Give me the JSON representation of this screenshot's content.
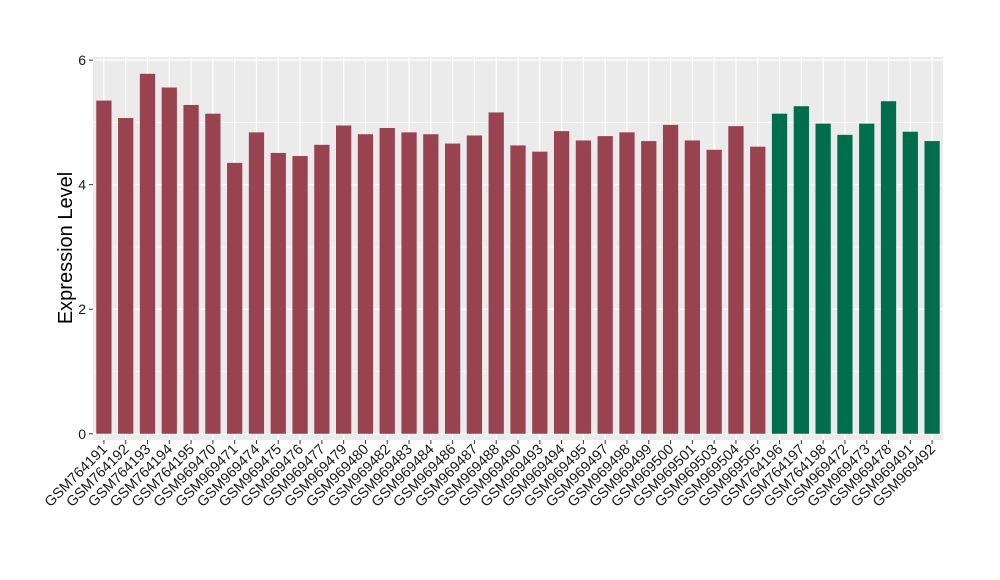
{
  "chart_data": {
    "type": "bar",
    "ylabel": "Expression Level",
    "xlabel": "",
    "ylim": [
      -0.1,
      6.05
    ],
    "yticks": [
      0,
      2,
      4,
      6
    ],
    "grid": true,
    "legend": "none",
    "colors": {
      "groupA": "#9a4350",
      "groupB": "#006e4a",
      "panel": "#ebebeb",
      "grid": "#ffffff"
    },
    "categories": [
      "GSM764191",
      "GSM764192",
      "GSM764193",
      "GSM764194",
      "GSM764195",
      "GSM969470",
      "GSM969471",
      "GSM969474",
      "GSM969475",
      "GSM969476",
      "GSM969477",
      "GSM969479",
      "GSM969480",
      "GSM969482",
      "GSM969483",
      "GSM969484",
      "GSM969486",
      "GSM969487",
      "GSM969488",
      "GSM969490",
      "GSM969493",
      "GSM969494",
      "GSM969495",
      "GSM969497",
      "GSM969498",
      "GSM969499",
      "GSM969500",
      "GSM969501",
      "GSM969503",
      "GSM969504",
      "GSM969505",
      "GSM764196",
      "GSM764197",
      "GSM764198",
      "GSM969472",
      "GSM969473",
      "GSM969478",
      "GSM969491",
      "GSM969492"
    ],
    "values": [
      5.35,
      5.07,
      5.78,
      5.56,
      5.28,
      5.14,
      4.35,
      4.84,
      4.51,
      4.46,
      4.64,
      4.95,
      4.81,
      4.91,
      4.84,
      4.81,
      4.66,
      4.79,
      5.16,
      4.63,
      4.53,
      4.86,
      4.71,
      4.78,
      4.84,
      4.7,
      4.96,
      4.71,
      4.56,
      4.94,
      4.61,
      5.14,
      5.26,
      4.98,
      4.8,
      4.98,
      5.34,
      4.85,
      4.7
    ],
    "groups": [
      "A",
      "A",
      "A",
      "A",
      "A",
      "A",
      "A",
      "A",
      "A",
      "A",
      "A",
      "A",
      "A",
      "A",
      "A",
      "A",
      "A",
      "A",
      "A",
      "A",
      "A",
      "A",
      "A",
      "A",
      "A",
      "A",
      "A",
      "A",
      "A",
      "A",
      "A",
      "B",
      "B",
      "B",
      "B",
      "B",
      "B",
      "B",
      "B"
    ]
  }
}
